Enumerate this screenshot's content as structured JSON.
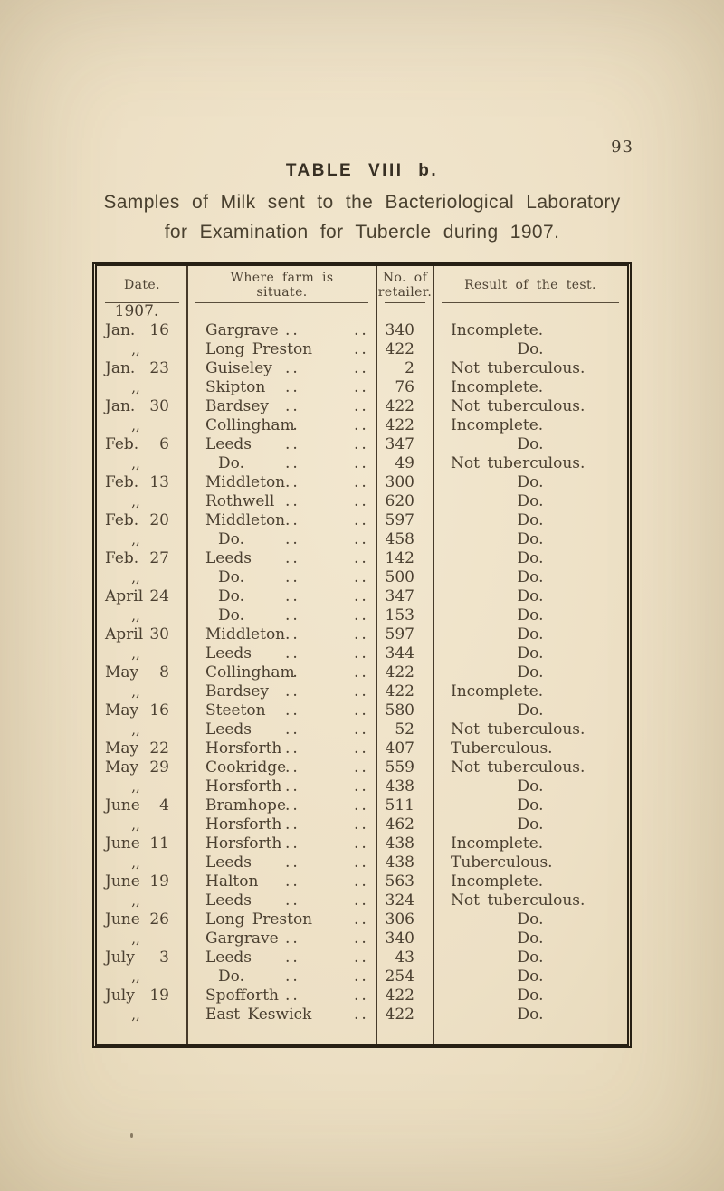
{
  "page": {
    "number": "93"
  },
  "table_title": "TABLE VIII b.",
  "subtitle": {
    "line1": "Samples of Milk sent to the Bacteriological Laboratory",
    "line2": "for Examination for Tubercle during 1907."
  },
  "table": {
    "headers": {
      "date": "Date.",
      "farm": "Where farm is\nsituate.",
      "retailer": "No. of\nretailer.",
      "result": "Result of the test."
    },
    "year_label": "1907.",
    "rows": [
      {
        "month": "Jan.",
        "day": "16",
        "farm": "Gargrave",
        "retailer": "340",
        "result": "Incomplete."
      },
      {
        "month": ",,",
        "day": "",
        "farm": "Long Preston",
        "retailer": "422",
        "result": "Do."
      },
      {
        "month": "Jan.",
        "day": "23",
        "farm": "Guiseley",
        "retailer": "2",
        "result": "Not tuberculous."
      },
      {
        "month": ",,",
        "day": "",
        "farm": "Skipton",
        "retailer": "76",
        "result": "Incomplete."
      },
      {
        "month": "Jan.",
        "day": "30",
        "farm": "Bardsey",
        "retailer": "422",
        "result": "Not tuberculous."
      },
      {
        "month": ",,",
        "day": "",
        "farm": "Collingham",
        "retailer": "422",
        "result": "Incomplete."
      },
      {
        "month": "Feb.",
        "day": "6",
        "farm": "Leeds",
        "retailer": "347",
        "result": "Do."
      },
      {
        "month": ",,",
        "day": "",
        "farm": "Do.",
        "retailer": "49",
        "result": "Not tuberculous."
      },
      {
        "month": "Feb.",
        "day": "13",
        "farm": "Middleton",
        "retailer": "300",
        "result": "Do."
      },
      {
        "month": ",,",
        "day": "",
        "farm": "Rothwell",
        "retailer": "620",
        "result": "Do."
      },
      {
        "month": "Feb.",
        "day": "20",
        "farm": "Middleton",
        "retailer": "597",
        "result": "Do."
      },
      {
        "month": ",,",
        "day": "",
        "farm": "Do.",
        "retailer": "458",
        "result": "Do."
      },
      {
        "month": "Feb.",
        "day": "27",
        "farm": "Leeds",
        "retailer": "142",
        "result": "Do."
      },
      {
        "month": ",,",
        "day": "",
        "farm": "Do.",
        "retailer": "500",
        "result": "Do."
      },
      {
        "month": "April",
        "day": "24",
        "farm": "Do.",
        "retailer": "347",
        "result": "Do."
      },
      {
        "month": ",,",
        "day": "",
        "farm": "Do.",
        "retailer": "153",
        "result": "Do."
      },
      {
        "month": "April",
        "day": "30",
        "farm": "Middleton",
        "retailer": "597",
        "result": "Do."
      },
      {
        "month": ",,",
        "day": "",
        "farm": "Leeds",
        "retailer": "344",
        "result": "Do."
      },
      {
        "month": "May",
        "day": "8",
        "farm": "Collingham",
        "retailer": "422",
        "result": "Do."
      },
      {
        "month": ",,",
        "day": "",
        "farm": "Bardsey",
        "retailer": "422",
        "result": "Incomplete."
      },
      {
        "month": "May",
        "day": "16",
        "farm": "Steeton",
        "retailer": "580",
        "result": "Do."
      },
      {
        "month": ",,",
        "day": "",
        "farm": "Leeds",
        "retailer": "52",
        "result": "Not tuberculous."
      },
      {
        "month": "May",
        "day": "22",
        "farm": "Horsforth",
        "retailer": "407",
        "result": "Tuberculous."
      },
      {
        "month": "May",
        "day": "29",
        "farm": "Cookridge",
        "retailer": "559",
        "result": "Not tuberculous."
      },
      {
        "month": ",,",
        "day": "",
        "farm": "Horsforth",
        "retailer": "438",
        "result": "Do."
      },
      {
        "month": "June",
        "day": "4",
        "farm": "Bramhope",
        "retailer": "511",
        "result": "Do."
      },
      {
        "month": ",,",
        "day": "",
        "farm": "Horsforth",
        "retailer": "462",
        "result": "Do."
      },
      {
        "month": "June",
        "day": "11",
        "farm": "Horsforth",
        "retailer": "438",
        "result": "Incomplete."
      },
      {
        "month": ",,",
        "day": "",
        "farm": "Leeds",
        "retailer": "438",
        "result": "Tuberculous."
      },
      {
        "month": "June",
        "day": "19",
        "farm": "Halton",
        "retailer": "563",
        "result": "Incomplete."
      },
      {
        "month": ",,",
        "day": "",
        "farm": "Leeds",
        "retailer": "324",
        "result": "Not tuberculous."
      },
      {
        "month": "June",
        "day": "26",
        "farm": "Long Preston",
        "retailer": "306",
        "result": "Do."
      },
      {
        "month": ",,",
        "day": "",
        "farm": "Gargrave",
        "retailer": "340",
        "result": "Do."
      },
      {
        "month": "July",
        "day": "3",
        "farm": "Leeds",
        "retailer": "43",
        "result": "Do."
      },
      {
        "month": ",,",
        "day": "",
        "farm": "Do.",
        "retailer": "254",
        "result": "Do."
      },
      {
        "month": "July",
        "day": "19",
        "farm": "Spofforth",
        "retailer": "422",
        "result": "Do."
      },
      {
        "month": ",,",
        "day": "",
        "farm": "East Keswick",
        "retailer": "422",
        "result": "Do."
      }
    ],
    "leader_dots": ".."
  }
}
